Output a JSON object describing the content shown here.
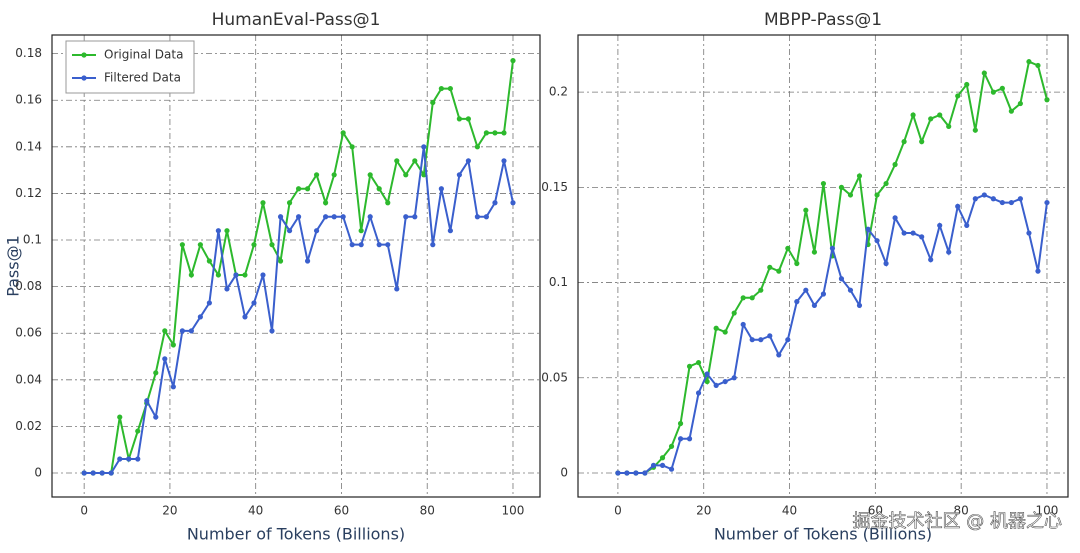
{
  "chart_data": [
    {
      "type": "line",
      "title": "HumanEval-Pass@1",
      "xlabel": "Number of Tokens (Billions)",
      "ylabel": "Pass@1",
      "x": [
        0,
        2.1,
        4.2,
        6.3,
        8.3,
        10.4,
        12.5,
        14.6,
        16.7,
        18.8,
        20.8,
        22.9,
        25,
        27.1,
        29.2,
        31.3,
        33.3,
        35.4,
        37.5,
        39.6,
        41.7,
        43.8,
        45.8,
        47.9,
        50,
        52.1,
        54.2,
        56.3,
        58.3,
        60.4,
        62.5,
        64.6,
        66.7,
        68.8,
        70.8,
        72.9,
        75,
        77.1,
        79.2,
        81.3,
        83.3,
        85.4,
        87.5,
        89.6,
        91.7,
        93.8,
        95.8,
        97.9,
        100
      ],
      "series": [
        {
          "name": "Original Data",
          "color": "#2db92d",
          "values": [
            0,
            0,
            0,
            0,
            0.024,
            0.006,
            0.018,
            0.03,
            0.043,
            0.061,
            0.055,
            0.098,
            0.085,
            0.098,
            0.091,
            0.085,
            0.104,
            0.085,
            0.085,
            0.098,
            0.116,
            0.098,
            0.091,
            0.116,
            0.122,
            0.122,
            0.128,
            0.116,
            0.128,
            0.146,
            0.14,
            0.104,
            0.128,
            0.122,
            0.116,
            0.134,
            0.128,
            0.134,
            0.128,
            0.159,
            0.165,
            0.165,
            0.152,
            0.152,
            0.14,
            0.146,
            0.146,
            0.146,
            0.177
          ]
        },
        {
          "name": "Filtered Data",
          "color": "#3a5fcd",
          "values": [
            0,
            0,
            0,
            0,
            0.006,
            0.006,
            0.006,
            0.031,
            0.024,
            0.049,
            0.037,
            0.061,
            0.061,
            0.067,
            0.073,
            0.104,
            0.079,
            0.085,
            0.067,
            0.073,
            0.085,
            0.061,
            0.11,
            0.104,
            0.11,
            0.091,
            0.104,
            0.11,
            0.11,
            0.11,
            0.098,
            0.098,
            0.11,
            0.098,
            0.098,
            0.079,
            0.11,
            0.11,
            0.14,
            0.098,
            0.122,
            0.104,
            0.128,
            0.134,
            0.11,
            0.11,
            0.116,
            0.134,
            0.116
          ]
        }
      ],
      "xlim": [
        -7.5,
        106.3
      ],
      "xticks": [
        0,
        20,
        40,
        60,
        80,
        100
      ],
      "ylim": [
        -0.0103,
        0.188
      ],
      "yticks": [
        0,
        0.02,
        0.04,
        0.06,
        0.08,
        0.1,
        0.12,
        0.14,
        0.16,
        0.18
      ],
      "grid": true,
      "legend": "upper left"
    },
    {
      "type": "line",
      "title": "MBPP-Pass@1",
      "xlabel": "Number of Tokens (Billions)",
      "x": [
        0,
        2.1,
        4.2,
        6.3,
        8.3,
        10.4,
        12.5,
        14.6,
        16.7,
        18.8,
        20.8,
        22.9,
        25,
        27.1,
        29.2,
        31.3,
        33.3,
        35.4,
        37.5,
        39.6,
        41.7,
        43.8,
        45.8,
        47.9,
        50,
        52.1,
        54.2,
        56.3,
        58.3,
        60.4,
        62.5,
        64.6,
        66.7,
        68.8,
        70.8,
        72.9,
        75,
        77.1,
        79.2,
        81.3,
        83.3,
        85.4,
        87.5,
        89.6,
        91.7,
        93.8,
        95.8,
        97.9,
        100
      ],
      "series": [
        {
          "color": "#2db92d",
          "values": [
            0,
            0,
            0,
            0,
            0.003,
            0.008,
            0.014,
            0.026,
            0.056,
            0.058,
            0.048,
            0.076,
            0.074,
            0.084,
            0.092,
            0.092,
            0.096,
            0.108,
            0.106,
            0.118,
            0.11,
            0.138,
            0.116,
            0.152,
            0.114,
            0.15,
            0.146,
            0.156,
            0.12,
            0.146,
            0.152,
            0.162,
            0.174,
            0.188,
            0.174,
            0.186,
            0.188,
            0.182,
            0.198,
            0.204,
            0.18,
            0.21,
            0.2,
            0.202,
            0.19,
            0.194,
            0.216,
            0.214,
            0.196
          ]
        },
        {
          "color": "#3a5fcd",
          "values": [
            0,
            0,
            0,
            0,
            0.004,
            0.004,
            0.002,
            0.018,
            0.018,
            0.042,
            0.052,
            0.046,
            0.048,
            0.05,
            0.078,
            0.07,
            0.07,
            0.072,
            0.062,
            0.07,
            0.09,
            0.096,
            0.088,
            0.094,
            0.118,
            0.102,
            0.096,
            0.088,
            0.128,
            0.122,
            0.11,
            0.134,
            0.126,
            0.126,
            0.124,
            0.112,
            0.13,
            0.116,
            0.14,
            0.13,
            0.144,
            0.146,
            0.144,
            0.142,
            0.142,
            0.144,
            0.126,
            0.106,
            0.142
          ]
        }
      ],
      "xlim": [
        -9.3,
        104.9
      ],
      "xticks": [
        0,
        20,
        40,
        60,
        80,
        100
      ],
      "ylim": [
        -0.0126,
        0.23
      ],
      "yticks": [
        0,
        0.05,
        0.1,
        0.15,
        0.2
      ],
      "grid": true
    }
  ],
  "watermark": "掘金技术社区 @ 机器之心"
}
